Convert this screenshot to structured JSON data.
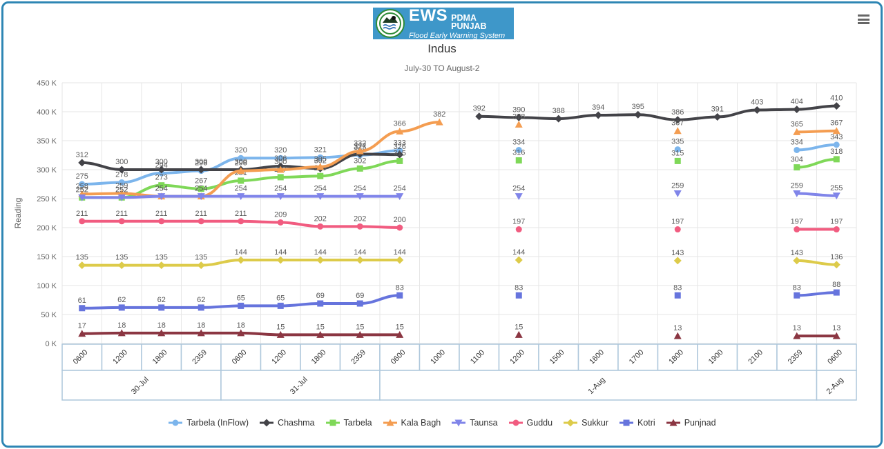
{
  "header": {
    "logo": {
      "ews": "EWS",
      "org": "PDMA PUNJAB",
      "tagline": "Flood Early Warning System"
    }
  },
  "title": "Indus",
  "subtitle": "July-30 TO August-2",
  "chart_data": {
    "type": "line",
    "title": "Indus",
    "subtitle": "July-30 TO August-2",
    "ylabel": "Reading",
    "ylim": [
      0,
      450
    ],
    "grid": true,
    "legend_position": "bottom",
    "ytick_values": [
      0,
      50,
      100,
      150,
      200,
      250,
      300,
      350,
      400,
      450
    ],
    "yticks": [
      "0 K",
      "50 K",
      "100 K",
      "150 K",
      "200 K",
      "250 K",
      "300 K",
      "350 K",
      "400 K",
      "450 K"
    ],
    "categories": [
      "0600",
      "1200",
      "1800",
      "2359",
      "0600",
      "1200",
      "1800",
      "2359",
      "0600",
      "1000",
      "1100",
      "1200",
      "1500",
      "1600",
      "1700",
      "1800",
      "1900",
      "2100",
      "2359",
      "0600"
    ],
    "date_bands": [
      {
        "label": "30-Jul",
        "from": 0,
        "to": 3
      },
      {
        "label": "31-Jul",
        "from": 4,
        "to": 7
      },
      {
        "label": "1-Aug",
        "from": 8,
        "to": 18
      },
      {
        "label": "2-Aug",
        "from": 19,
        "to": 19
      }
    ],
    "series": [
      {
        "name": "Tarbela (InFlow)",
        "color": "#7cb5ec",
        "marker": "circle",
        "values": [
          275,
          278,
          294,
          298,
          320,
          320,
          321,
          325,
          333,
          null,
          null,
          334,
          null,
          null,
          null,
          335,
          null,
          null,
          334,
          343
        ]
      },
      {
        "name": "Chashma",
        "color": "#434348",
        "marker": "diamond",
        "values": [
          312,
          300,
          300,
          300,
          300,
          306,
          302,
          327,
          326,
          null,
          392,
          390,
          388,
          394,
          395,
          386,
          391,
          403,
          404,
          410
        ]
      },
      {
        "name": "Tarbela",
        "color": "#7fd858",
        "marker": "square",
        "values": [
          252,
          252,
          273,
          267,
          281,
          287,
          289,
          302,
          315,
          null,
          null,
          316,
          null,
          null,
          null,
          315,
          null,
          null,
          304,
          318
        ]
      },
      {
        "name": "Kala Bagh",
        "color": "#f49d51",
        "marker": "triangle",
        "values": [
          258,
          259,
          254,
          254,
          298,
          300,
          305,
          332,
          366,
          382,
          null,
          378,
          null,
          null,
          null,
          367,
          null,
          null,
          365,
          367
        ]
      },
      {
        "name": "Taunsa",
        "color": "#8085e9",
        "marker": "triangle-down",
        "values": [
          252,
          252,
          254,
          254,
          254,
          254,
          254,
          254,
          254,
          null,
          null,
          254,
          null,
          null,
          null,
          259,
          null,
          null,
          259,
          255
        ]
      },
      {
        "name": "Guddu",
        "color": "#f15c80",
        "marker": "circle",
        "values": [
          211,
          211,
          211,
          211,
          211,
          209,
          202,
          202,
          200,
          null,
          null,
          197,
          null,
          null,
          null,
          197,
          null,
          null,
          197,
          197
        ]
      },
      {
        "name": "Sukkur",
        "color": "#ddcb4a",
        "marker": "diamond",
        "values": [
          135,
          135,
          135,
          135,
          144,
          144,
          144,
          144,
          144,
          null,
          null,
          144,
          null,
          null,
          null,
          143,
          null,
          null,
          143,
          136
        ]
      },
      {
        "name": "Kotri",
        "color": "#6674dd",
        "marker": "square",
        "values": [
          61,
          62,
          62,
          62,
          65,
          65,
          69,
          69,
          83,
          null,
          null,
          83,
          null,
          null,
          null,
          83,
          null,
          null,
          83,
          88
        ]
      },
      {
        "name": "Punjnad",
        "color": "#8b3642",
        "marker": "triangle",
        "values": [
          17,
          18,
          18,
          18,
          18,
          15,
          15,
          15,
          15,
          null,
          null,
          15,
          null,
          null,
          null,
          13,
          null,
          null,
          13,
          13
        ]
      }
    ]
  }
}
